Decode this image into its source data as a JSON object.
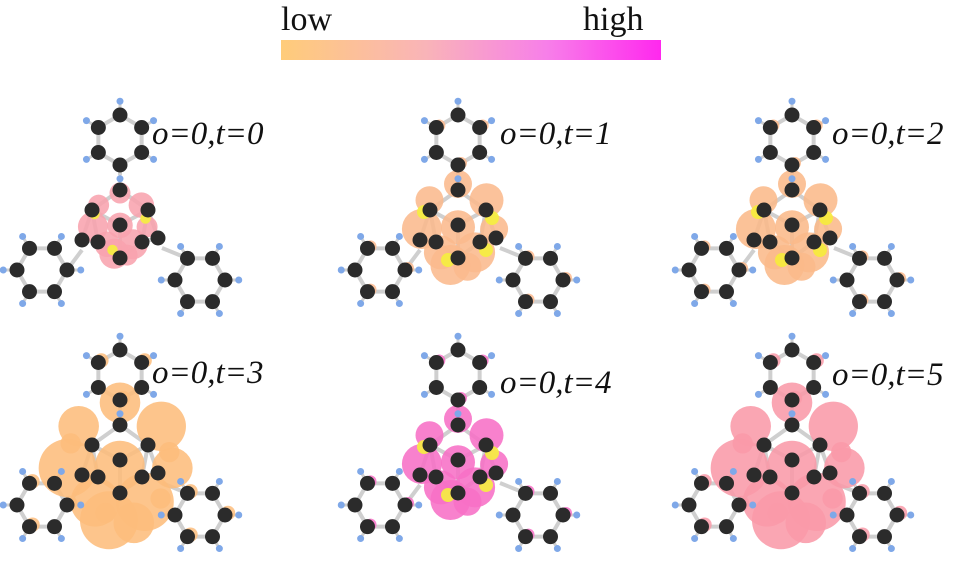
{
  "colorbar": {
    "low_label": "low",
    "high_label": "high",
    "colors": [
      "#ffcc7a",
      "#f9b4b8",
      "#f77fe9",
      "#ff28ee"
    ]
  },
  "panels": [
    {
      "label": "o=0,t=0",
      "lobe_color": "#f8a3ae",
      "accent_color": "#f5ef3e",
      "lobe_size": "small"
    },
    {
      "label": "o=0,t=1",
      "lobe_color": "#fbb98d",
      "accent_color": "#f5ef3e",
      "lobe_size": "medium"
    },
    {
      "label": "o=0,t=2",
      "lobe_color": "#fbb98a",
      "accent_color": "#f6ec3a",
      "lobe_size": "medium"
    },
    {
      "label": "o=0,t=3",
      "lobe_color": "#fdbd7c",
      "accent_color": "#fdbd7c",
      "lobe_size": "large"
    },
    {
      "label": "o=0,t=4",
      "lobe_color": "#f76fc6",
      "accent_color": "#f5ef3e",
      "lobe_size": "medium"
    },
    {
      "label": "o=0,t=5",
      "lobe_color": "#f99aa8",
      "accent_color": "#f99aa8",
      "lobe_size": "large"
    }
  ],
  "atom_colors": {
    "carbon": "#2b2b2b",
    "hydrogen": "#7fa8e8",
    "bond": "#cfcfcf"
  }
}
